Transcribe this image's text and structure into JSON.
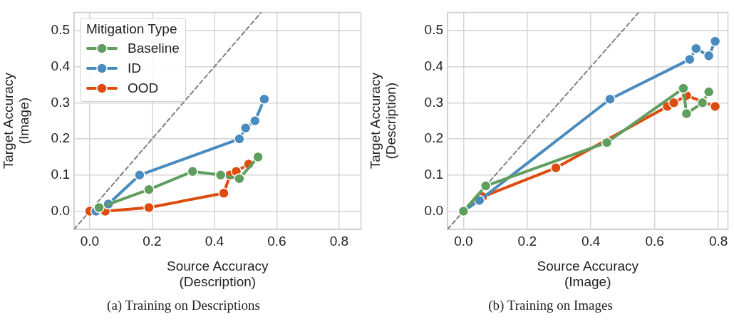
{
  "chart_data": [
    {
      "type": "line",
      "xlabel": "Source Accuracy\n(Description)",
      "ylabel": "Target Accuracy\n(Image)",
      "legend_title": "Mitigation Type",
      "legend": "top left",
      "grid": true,
      "marker": "circle",
      "xlim": [
        -0.05,
        0.87
      ],
      "ylim": [
        -0.05,
        0.55
      ],
      "xticks": [
        {
          "value": 0,
          "label": "0.0"
        },
        0.2,
        0.4,
        0.6,
        0.8
      ],
      "yticks": [
        {
          "value": 0,
          "label": "0.0"
        },
        0.1,
        0.2,
        0.3,
        0.4,
        0.5
      ],
      "annotations": [
        "(a) Training on Descriptions"
      ],
      "series": [
        {
          "type": "line",
          "color": "#808080",
          "line_style": "dashed",
          "marker": "none",
          "x": [
            -0.05,
            0.55
          ],
          "values": [
            -0.05,
            0.55
          ]
        },
        {
          "name": "Baseline",
          "color": "#5f9e5f",
          "x": [
            0.03,
            0.19,
            0.33,
            0.42,
            0.48,
            0.54
          ],
          "values": [
            0.01,
            0.06,
            0.11,
            0.1,
            0.09,
            0.15
          ]
        },
        {
          "name": "ID",
          "color": "#4a8bbf",
          "x": [
            0.02,
            0.06,
            0.16,
            0.48,
            0.5,
            0.53,
            0.56
          ],
          "values": [
            0.0,
            0.02,
            0.1,
            0.2,
            0.23,
            0.25,
            0.31
          ]
        },
        {
          "name": "OOD",
          "color": "#dd4b0f",
          "x": [
            0.0,
            0.05,
            0.19,
            0.43,
            0.45,
            0.47,
            0.51
          ],
          "values": [
            0.0,
            0.0,
            0.01,
            0.05,
            0.1,
            0.11,
            0.13
          ]
        }
      ]
    },
    {
      "type": "line",
      "xlabel": "Source Accuracy\n(Image)",
      "ylabel": "Target Accuracy\n(Description)",
      "grid": true,
      "marker": "circle",
      "xlim": [
        -0.05,
        0.83
      ],
      "ylim": [
        -0.05,
        0.55
      ],
      "xticks": [
        {
          "value": 0,
          "label": "0.0"
        },
        0.2,
        0.4,
        0.6,
        0.8
      ],
      "yticks": [
        {
          "value": 0,
          "label": "0.0"
        },
        0.1,
        0.2,
        0.3,
        0.4,
        0.5
      ],
      "annotations": [
        "(b) Training on Images"
      ],
      "series": [
        {
          "type": "line",
          "color": "#808080",
          "line_style": "dashed",
          "marker": "none",
          "x": [
            -0.05,
            0.55
          ],
          "values": [
            -0.05,
            0.55
          ]
        },
        {
          "color": "#5f9e5f",
          "x": [
            0.0,
            0.07,
            0.45,
            0.69,
            0.7,
            0.75,
            0.77
          ],
          "values": [
            0.0,
            0.07,
            0.19,
            0.34,
            0.27,
            0.3,
            0.33
          ]
        },
        {
          "color": "#4a8bbf",
          "x": [
            0.0,
            0.05,
            0.46,
            0.71,
            0.73,
            0.77,
            0.79
          ],
          "values": [
            0.0,
            0.03,
            0.31,
            0.42,
            0.45,
            0.43,
            0.47
          ]
        },
        {
          "color": "#dd4b0f",
          "x": [
            0.0,
            0.06,
            0.29,
            0.64,
            0.66,
            0.7,
            0.79
          ],
          "values": [
            0.0,
            0.04,
            0.12,
            0.29,
            0.3,
            0.32,
            0.29
          ]
        }
      ]
    }
  ]
}
